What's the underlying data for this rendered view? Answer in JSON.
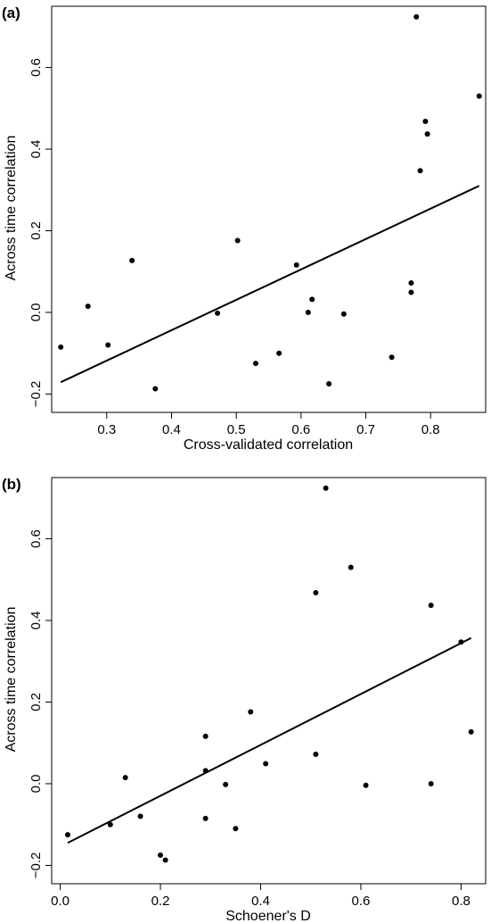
{
  "chart_data": [
    {
      "type": "scatter",
      "panel_label": "(a)",
      "xlabel": "Cross-validated correlation",
      "ylabel": "Across time correlation",
      "xlim": [
        0.215,
        0.885
      ],
      "ylim": [
        -0.245,
        0.75
      ],
      "xticks": [
        0.3,
        0.4,
        0.5,
        0.6,
        0.7,
        0.8
      ],
      "xtick_labels": [
        "0.3",
        "0.4",
        "0.5",
        "0.6",
        "0.7",
        "0.8"
      ],
      "yticks": [
        -0.2,
        0.0,
        0.2,
        0.4,
        0.6
      ],
      "ytick_labels": [
        "−0.2",
        "0.0",
        "0.2",
        "0.4",
        "0.6"
      ],
      "grid": false,
      "points": [
        {
          "x": 0.229,
          "y": -0.085
        },
        {
          "x": 0.271,
          "y": 0.015
        },
        {
          "x": 0.302,
          "y": -0.08
        },
        {
          "x": 0.339,
          "y": 0.127
        },
        {
          "x": 0.375,
          "y": -0.187
        },
        {
          "x": 0.471,
          "y": -0.002
        },
        {
          "x": 0.502,
          "y": 0.176
        },
        {
          "x": 0.53,
          "y": -0.125
        },
        {
          "x": 0.566,
          "y": -0.1
        },
        {
          "x": 0.593,
          "y": 0.116
        },
        {
          "x": 0.611,
          "y": 0.0
        },
        {
          "x": 0.617,
          "y": 0.032
        },
        {
          "x": 0.643,
          "y": -0.175
        },
        {
          "x": 0.666,
          "y": -0.004
        },
        {
          "x": 0.74,
          "y": -0.11
        },
        {
          "x": 0.77,
          "y": 0.072
        },
        {
          "x": 0.77,
          "y": 0.049
        },
        {
          "x": 0.778,
          "y": 0.724
        },
        {
          "x": 0.784,
          "y": 0.347
        },
        {
          "x": 0.792,
          "y": 0.468
        },
        {
          "x": 0.795,
          "y": 0.437
        },
        {
          "x": 0.875,
          "y": 0.53
        }
      ],
      "fit_line": [
        {
          "x": 0.229,
          "y": -0.171
        },
        {
          "x": 0.875,
          "y": 0.31
        }
      ]
    },
    {
      "type": "scatter",
      "panel_label": "(b)",
      "xlabel": "Schoener's D",
      "ylabel": "Across time correlation",
      "xlim": [
        -0.017,
        0.849
      ],
      "ylim": [
        -0.245,
        0.75
      ],
      "xticks": [
        0.0,
        0.2,
        0.4,
        0.6,
        0.8
      ],
      "xtick_labels": [
        "0.0",
        "0.2",
        "0.4",
        "0.6",
        "0.8"
      ],
      "yticks": [
        -0.2,
        0.0,
        0.2,
        0.4,
        0.6
      ],
      "ytick_labels": [
        "−0.2",
        "0.0",
        "0.2",
        "0.4",
        "0.6"
      ],
      "grid": false,
      "points": [
        {
          "x": 0.015,
          "y": -0.125
        },
        {
          "x": 0.1,
          "y": -0.1
        },
        {
          "x": 0.13,
          "y": 0.015
        },
        {
          "x": 0.16,
          "y": -0.08
        },
        {
          "x": 0.2,
          "y": -0.175
        },
        {
          "x": 0.21,
          "y": -0.187
        },
        {
          "x": 0.29,
          "y": 0.116
        },
        {
          "x": 0.29,
          "y": 0.032
        },
        {
          "x": 0.29,
          "y": -0.085
        },
        {
          "x": 0.33,
          "y": -0.002
        },
        {
          "x": 0.35,
          "y": -0.11
        },
        {
          "x": 0.38,
          "y": 0.176
        },
        {
          "x": 0.41,
          "y": 0.049
        },
        {
          "x": 0.51,
          "y": 0.468
        },
        {
          "x": 0.51,
          "y": 0.072
        },
        {
          "x": 0.53,
          "y": 0.724
        },
        {
          "x": 0.58,
          "y": 0.53
        },
        {
          "x": 0.61,
          "y": -0.004
        },
        {
          "x": 0.74,
          "y": 0.437
        },
        {
          "x": 0.74,
          "y": 0.0
        },
        {
          "x": 0.8,
          "y": 0.347
        },
        {
          "x": 0.82,
          "y": 0.127
        }
      ],
      "fit_line": [
        {
          "x": 0.015,
          "y": -0.145
        },
        {
          "x": 0.82,
          "y": 0.357
        }
      ]
    }
  ]
}
